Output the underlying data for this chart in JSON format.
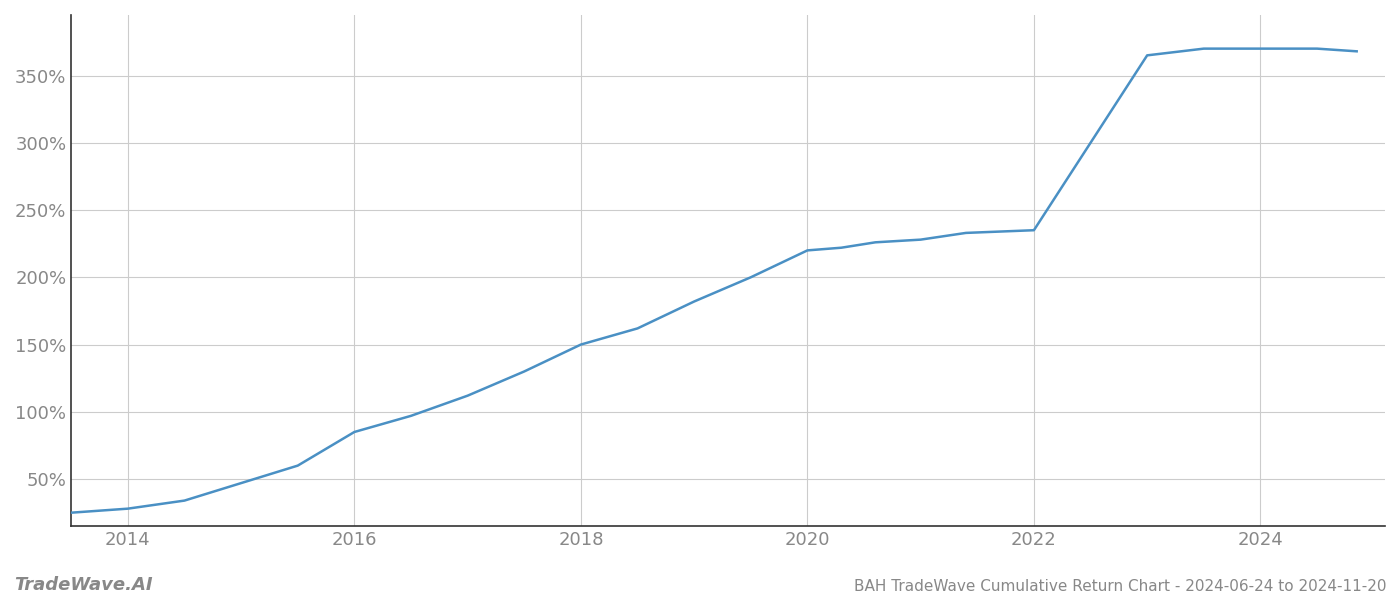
{
  "title": "BAH TradeWave Cumulative Return Chart - 2024-06-24 to 2024-11-20",
  "watermark": "TradeWave.AI",
  "line_color": "#4a90c4",
  "background_color": "#ffffff",
  "grid_color": "#cccccc",
  "x_years": [
    2013.5,
    2014.0,
    2014.5,
    2015.0,
    2015.5,
    2016.0,
    2016.5,
    2017.0,
    2017.5,
    2018.0,
    2018.5,
    2019.0,
    2019.5,
    2020.0,
    2020.3,
    2020.6,
    2021.0,
    2021.4,
    2022.0,
    2022.5,
    2023.0,
    2023.5,
    2024.0,
    2024.5,
    2024.85
  ],
  "y_values": [
    25,
    28,
    34,
    47,
    60,
    85,
    97,
    112,
    130,
    150,
    162,
    182,
    200,
    220,
    222,
    226,
    228,
    233,
    235,
    300,
    365,
    370,
    370,
    370,
    368
  ],
  "xlim": [
    2013.5,
    2025.1
  ],
  "ylim": [
    15,
    395
  ],
  "yticks": [
    50,
    100,
    150,
    200,
    250,
    300,
    350
  ],
  "xticks": [
    2014,
    2016,
    2018,
    2020,
    2022,
    2024
  ],
  "title_fontsize": 11,
  "tick_fontsize": 13,
  "watermark_fontsize": 13,
  "line_width": 1.8,
  "spine_color": "#333333",
  "tick_color": "#888888"
}
